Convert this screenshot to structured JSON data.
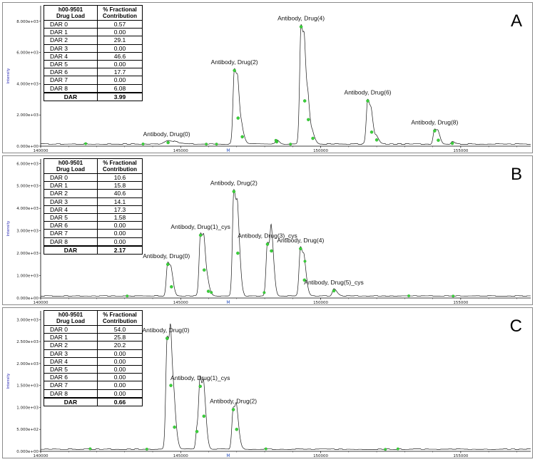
{
  "chart_data": [
    {
      "type": "line",
      "panel_label": "A",
      "ylabel": "Intensity",
      "x_marker": "M",
      "xlim": [
        140000,
        157500
      ],
      "ylim": [
        0,
        9000
      ],
      "y_ticks": [
        0,
        2000,
        4000,
        6000,
        8000
      ],
      "y_tick_labels": [
        "0.000e+00",
        "2.000e+03",
        "4.000e+03",
        "6.000e+03",
        "8.000e+03"
      ],
      "x_ticks": [
        140000,
        145000,
        150000,
        155000
      ],
      "x_tick_labels": [
        "140000",
        "145000",
        "150000",
        "155000"
      ],
      "table": {
        "header": [
          "h00-9501\nDrug Load",
          "% Fractional\nContribution"
        ],
        "rows": [
          [
            "DAR 0",
            "0.57"
          ],
          [
            "DAR 1",
            "0.00"
          ],
          [
            "DAR 2",
            "29.1"
          ],
          [
            "DAR 3",
            "0.00"
          ],
          [
            "DAR 4",
            "46.6"
          ],
          [
            "DAR 5",
            "0.00"
          ],
          [
            "DAR 6",
            "17.7"
          ],
          [
            "DAR 7",
            "0.00"
          ],
          [
            "DAR 8",
            "6.08"
          ]
        ],
        "total": [
          "DAR",
          "3.99"
        ]
      },
      "peaks": [
        {
          "label": "Antibody, Drug(0)",
          "x": 144550,
          "y": 230,
          "w": 230
        },
        {
          "label": "Antibody, Drug(2)",
          "x": 146920,
          "y": 4850,
          "w": 85
        },
        {
          "label": "Antibody, Drug(4)",
          "x": 149300,
          "y": 7650,
          "w": 85
        },
        {
          "label": "Antibody, Drug(6)",
          "x": 151680,
          "y": 2900,
          "w": 85
        },
        {
          "label": "Antibody, Drug(8)",
          "x": 154070,
          "y": 980,
          "w": 85
        }
      ],
      "minor_peaks": [
        {
          "x": 147050,
          "y": 1800
        },
        {
          "x": 147200,
          "y": 600
        },
        {
          "x": 149430,
          "y": 2900
        },
        {
          "x": 149560,
          "y": 1700
        },
        {
          "x": 149720,
          "y": 500
        },
        {
          "x": 148430,
          "y": 280
        },
        {
          "x": 151820,
          "y": 900
        },
        {
          "x": 152000,
          "y": 400
        },
        {
          "x": 154200,
          "y": 380
        },
        {
          "x": 154700,
          "y": 180
        }
      ]
    },
    {
      "type": "line",
      "panel_label": "B",
      "ylabel": "Intensity",
      "x_marker": "M",
      "xlim": [
        140000,
        157500
      ],
      "ylim": [
        0,
        6200
      ],
      "y_ticks": [
        0,
        1000,
        2000,
        3000,
        4000,
        5000,
        6000
      ],
      "y_tick_labels": [
        "0.000e+00",
        "1.000e+03",
        "2.000e+03",
        "3.000e+03",
        "4.000e+03",
        "5.000e+03",
        "6.000e+03"
      ],
      "x_ticks": [
        140000,
        145000,
        150000,
        155000
      ],
      "x_tick_labels": [
        "140000",
        "145000",
        "150000",
        "155000"
      ],
      "table": {
        "header": [
          "h00-9501\nDrug Load",
          "% Fractional\nContribution"
        ],
        "rows": [
          [
            "DAR 0",
            "10.6"
          ],
          [
            "DAR 1",
            "15.8"
          ],
          [
            "DAR 2",
            "40.6"
          ],
          [
            "DAR 3",
            "14.1"
          ],
          [
            "DAR 4",
            "17.3"
          ],
          [
            "DAR 5",
            "1.58"
          ],
          [
            "DAR 6",
            "0.00"
          ],
          [
            "DAR 7",
            "0.00"
          ],
          [
            "DAR 8",
            "0.00"
          ]
        ],
        "total": [
          "DAR",
          "2.17"
        ]
      },
      "peaks": [
        {
          "label": "Antibody, Drug(0)",
          "x": 144540,
          "y": 1500,
          "w": 85
        },
        {
          "label": "Antibody, Drug(1)_cys",
          "x": 145710,
          "y": 2800,
          "w": 85
        },
        {
          "label": "Antibody, Drug(2)",
          "x": 146900,
          "y": 4750,
          "w": 85
        },
        {
          "label": "Antibody, Drug(3)_cys",
          "x": 148100,
          "y": 2400,
          "w": 85
        },
        {
          "label": "Antibody, Drug(4)",
          "x": 149280,
          "y": 2200,
          "w": 85
        },
        {
          "label": "Antibody, Drug(5)_cys",
          "x": 150470,
          "y": 320,
          "w": 85
        }
      ],
      "minor_peaks": [
        {
          "x": 144670,
          "y": 500
        },
        {
          "x": 145840,
          "y": 1250
        },
        {
          "x": 145990,
          "y": 300
        },
        {
          "x": 147040,
          "y": 2000
        },
        {
          "x": 148240,
          "y": 2100
        },
        {
          "x": 149420,
          "y": 800
        }
      ]
    },
    {
      "type": "line",
      "panel_label": "C",
      "ylabel": "Intensity",
      "x_marker": "M",
      "xlim": [
        140000,
        157500
      ],
      "ylim": [
        0,
        3200
      ],
      "y_ticks": [
        0,
        500,
        1000,
        1500,
        2000,
        2500,
        3000
      ],
      "y_tick_labels": [
        "0.000e+00",
        "5.000e+02",
        "1.000e+03",
        "1.500e+03",
        "2.000e+03",
        "2.500e+03",
        "3.000e+03"
      ],
      "x_ticks": [
        140000,
        145000,
        150000,
        155000
      ],
      "x_tick_labels": [
        "140000",
        "145000",
        "150000",
        "155000"
      ],
      "table": {
        "header": [
          "h00-9501\nDrug Load",
          "% Fractional\nContribution"
        ],
        "rows": [
          [
            "DAR 0",
            "54.0"
          ],
          [
            "DAR 1",
            "25.8"
          ],
          [
            "DAR 2",
            "20.2"
          ],
          [
            "DAR 3",
            "0.00"
          ],
          [
            "DAR 4",
            "0.00"
          ],
          [
            "DAR 5",
            "0.00"
          ],
          [
            "DAR 6",
            "0.00"
          ],
          [
            "DAR 7",
            "0.00"
          ],
          [
            "DAR 8",
            "0.00"
          ]
        ],
        "total": [
          "DAR",
          "0.66"
        ]
      },
      "peaks": [
        {
          "label": "Antibody, Drug(0)",
          "x": 144520,
          "y": 2570,
          "w": 85
        },
        {
          "label": "Antibody, Drug(1)_cys",
          "x": 145700,
          "y": 1480,
          "w": 85
        },
        {
          "label": "Antibody, Drug(2)",
          "x": 146880,
          "y": 950,
          "w": 85
        }
      ],
      "minor_peaks": [
        {
          "x": 144650,
          "y": 1500
        },
        {
          "x": 144780,
          "y": 550
        },
        {
          "x": 145580,
          "y": 450
        },
        {
          "x": 145830,
          "y": 800
        },
        {
          "x": 147000,
          "y": 500
        }
      ]
    }
  ]
}
